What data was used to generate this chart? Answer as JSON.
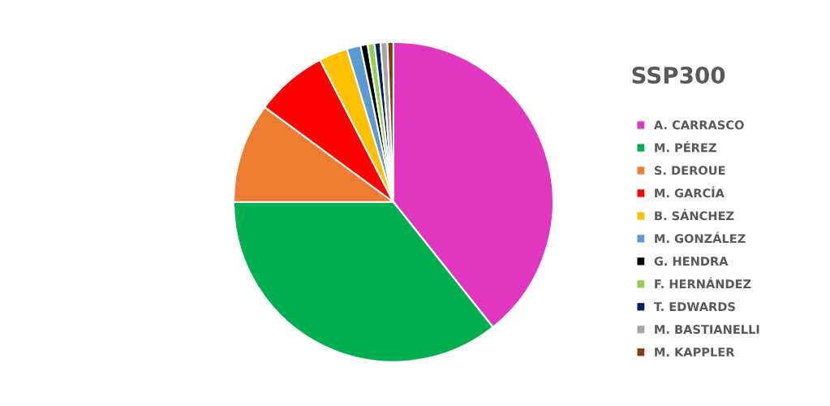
{
  "chart_data": {
    "type": "pie",
    "title": "SSP300",
    "categories": [
      "A. CARRASCO",
      "M. PÉREZ",
      "S. DEROUE",
      "M. GARCÍA",
      "B. SÁNCHEZ",
      "M. GONZÁLEZ",
      "G. HENDRA",
      "F. HERNÁNDEZ",
      "T. EDWARDS",
      "M. BASTIANELLI",
      "M. KAPPLER"
    ],
    "values": [
      39.3,
      35.7,
      10.1,
      7.3,
      2.9,
      1.4,
      0.7,
      0.7,
      0.6,
      0.7,
      0.6
    ],
    "colors": [
      "#e036c0",
      "#00b050",
      "#ed7d31",
      "#ff0000",
      "#ffc000",
      "#5b9bd5",
      "#000000",
      "#92d050",
      "#002060",
      "#a5a5a5",
      "#843c0c"
    ],
    "legend": "right"
  }
}
